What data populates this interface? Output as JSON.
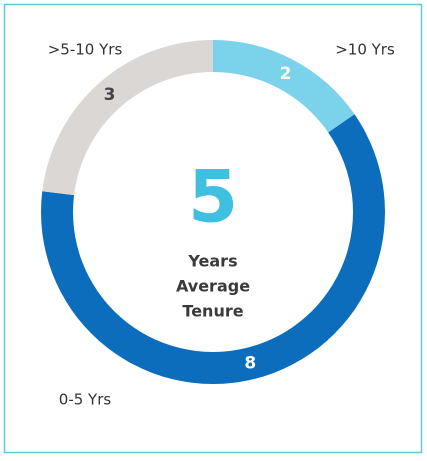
{
  "chart_data": {
    "type": "donut",
    "categories": [
      ">10 Yrs",
      "0-5 Yrs",
      ">5-10 Yrs"
    ],
    "values": [
      2,
      8,
      3
    ],
    "colors": [
      "#7ad3ea",
      "#0b6dbb",
      "#dad7d5"
    ],
    "value_label_colors": [
      "#ffffff",
      "#ffffff",
      "#444444"
    ],
    "center_value": 5,
    "center_label": [
      "Years",
      "Average",
      "Tenure"
    ]
  }
}
